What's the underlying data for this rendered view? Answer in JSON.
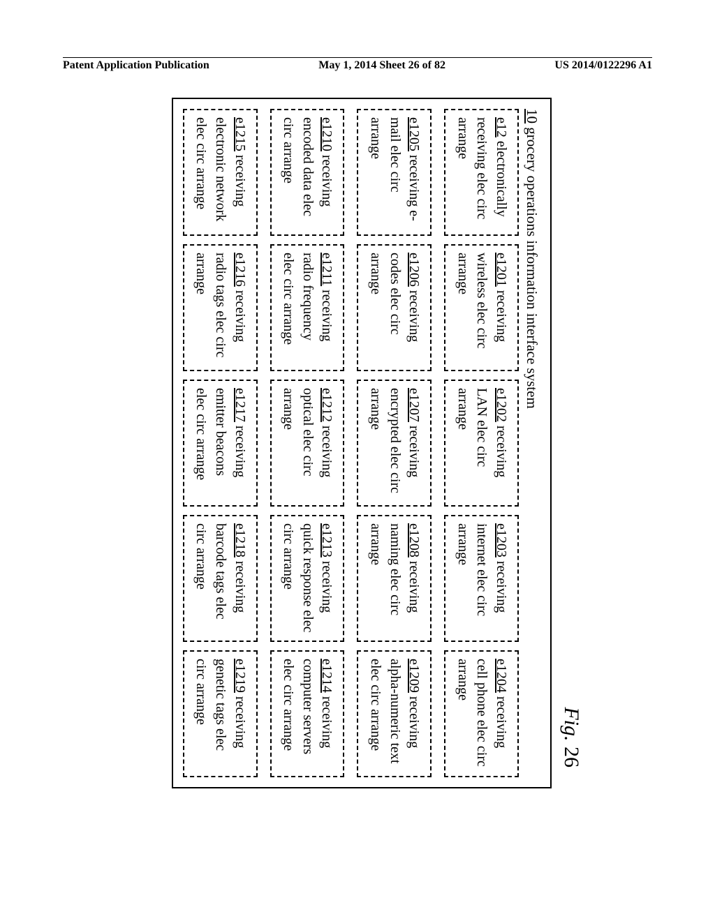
{
  "header": {
    "left": "Patent Application Publication",
    "center": "May 1, 2014  Sheet 26 of 82",
    "right": "US 2014/0122296 A1"
  },
  "figure": {
    "label_prefix": "Fig.",
    "label_number": "26",
    "outer_id": "10",
    "outer_text": "grocery operations information interface system"
  },
  "cells": [
    {
      "id": "e12",
      "text": "electronically receiving  elec circ arrange"
    },
    {
      "id": "e1201",
      "text": "receiving wireless elec circ arrange"
    },
    {
      "id": "e1202",
      "text": "receiving LAN elec circ arrange"
    },
    {
      "id": "e1203",
      "text": "receiving internet elec circ arrange"
    },
    {
      "id": "e1204",
      "text": "receiving cell phone elec circ arrange"
    },
    {
      "id": "e1205",
      "text": "receiving e-mail  elec circ arrange"
    },
    {
      "id": "e1206",
      "text": "receiving codes elec circ arrange"
    },
    {
      "id": "e1207",
      "text": "receiving encrypted  elec circ arrange"
    },
    {
      "id": "e1208",
      "text": "receiving naming  elec circ arrange"
    },
    {
      "id": "e1209",
      "text": "receiving alpha-numeric text elec circ arrange"
    },
    {
      "id": "e1210",
      "text": "receiving encoded data  elec circ arrange"
    },
    {
      "id": "e1211",
      "text": "receiving radio frequency elec circ arrange"
    },
    {
      "id": "e1212",
      "text": "receiving optical elec circ arrange"
    },
    {
      "id": "e1213",
      "text": "receiving quick response elec circ arrange"
    },
    {
      "id": "e1214",
      "text": "receiving computer servers elec circ arrange"
    },
    {
      "id": "e1215",
      "text": "receiving electronic network elec circ arrange"
    },
    {
      "id": "e1216",
      "text": "receiving radio tags elec circ arrange"
    },
    {
      "id": "e1217",
      "text": "receiving emitter beacons elec circ arrange"
    },
    {
      "id": "e1218",
      "text": "receiving barcode tags elec circ arrange"
    },
    {
      "id": "e1219",
      "text": "receiving genetic tags elec circ arrange"
    }
  ]
}
